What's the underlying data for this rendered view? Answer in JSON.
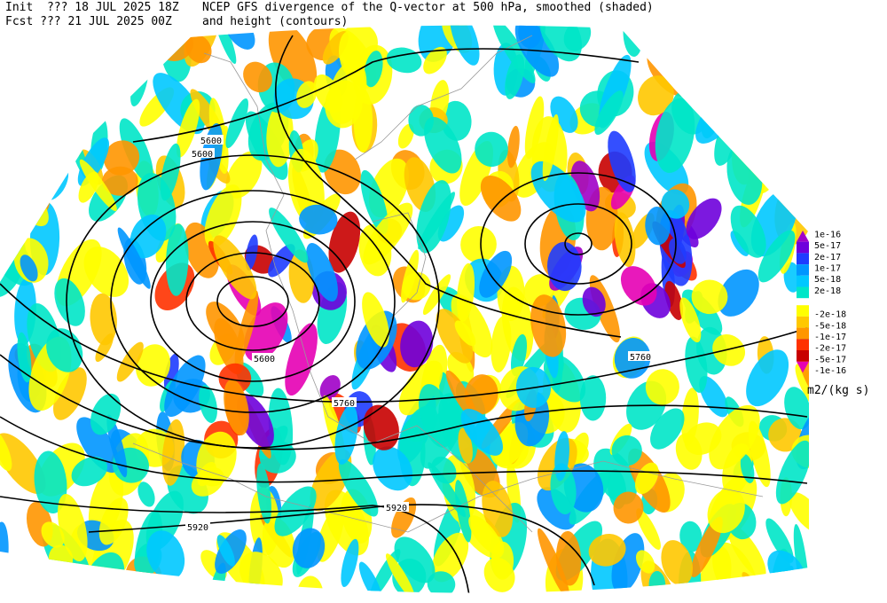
{
  "header": {
    "init_label": "Init  ??? 18 JUL 2025 18Z",
    "fcst_label": "Fcst ??? 21 JUL 2025 00Z",
    "title_line1": "NCEP GFS divergence of the Q-vector at 500 hPa, smoothed (shaded)",
    "title_line2": "and height (contours)"
  },
  "contour_labels": [
    "5600",
    "5600",
    "5600",
    "5760",
    "5760",
    "5920",
    "5920"
  ],
  "colorbar": {
    "unit": "m2/(kg s)",
    "entries": [
      {
        "label": "1e-16",
        "color": "#a000c8"
      },
      {
        "label": "5e-17",
        "color": "#6e00dc"
      },
      {
        "label": "2e-17",
        "color": "#1e3cff"
      },
      {
        "label": "1e-17",
        "color": "#0096ff"
      },
      {
        "label": "5e-18",
        "color": "#00c8ff"
      },
      {
        "label": "2e-18",
        "color": "#00e6c8"
      },
      {
        "label": "-2e-18",
        "color": "#ffff00"
      },
      {
        "label": "-5e-18",
        "color": "#ffc800"
      },
      {
        "label": "-1e-17",
        "color": "#ff9600"
      },
      {
        "label": "-2e-17",
        "color": "#ff3200"
      },
      {
        "label": "-5e-17",
        "color": "#c80000"
      },
      {
        "label": "-1e-16",
        "color": "#e600b4"
      }
    ]
  }
}
